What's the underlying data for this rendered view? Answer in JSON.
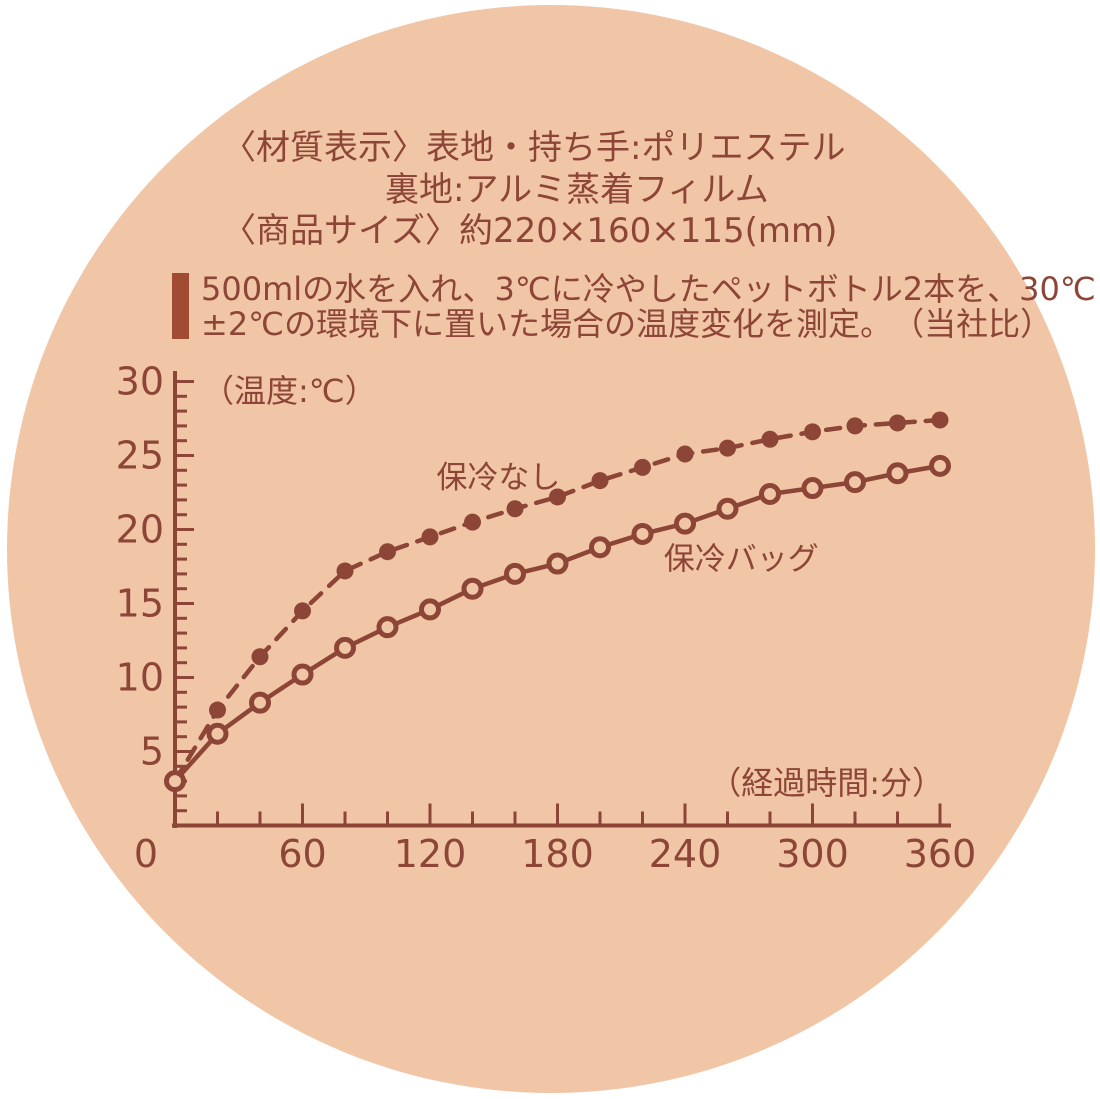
{
  "colors": {
    "circle_bg": "#f1c6a6",
    "ink": "#8c4536",
    "accent_bar": "#a24b33"
  },
  "header": {
    "material_label": "〈材質表示〉",
    "material_value": "表地・持ち手:ポリエステル",
    "material_line2": "裏地:アルミ蒸着フィルム",
    "size_label": "〈商品サイズ〉",
    "size_value": "約220×160×115(mm)"
  },
  "description": {
    "line1": "500mlの水を入れ、3℃に冷やしたペットボトル2本を、30℃",
    "line2": "±2℃の環境下に置いた場合の温度変化を測定。",
    "note": "（当社比）"
  },
  "chart_data": {
    "type": "line",
    "title": "",
    "xlabel": "（経過時間:分）",
    "ylabel": "（温度:℃）",
    "xlim": [
      0,
      366
    ],
    "ylim": [
      0,
      30
    ],
    "grid": false,
    "legend_position": "inline-annotations",
    "x": [
      0,
      20,
      40,
      60,
      80,
      100,
      120,
      140,
      160,
      180,
      200,
      220,
      240,
      260,
      280,
      300,
      320,
      340,
      360
    ],
    "x_major_tick_labels": [
      0,
      60,
      120,
      180,
      240,
      300,
      360
    ],
    "x_minor_tick_step": 20,
    "y_major_tick_labels": [
      5,
      10,
      15,
      20,
      25,
      30
    ],
    "y_minor_tick_step": 1,
    "series": [
      {
        "name": "保冷なし",
        "line_style": "dashed",
        "marker": "filled-circle",
        "skip_first_marker": true,
        "values": [
          3,
          7.8,
          11.4,
          14.5,
          17.2,
          18.5,
          19.5,
          20.5,
          21.4,
          22.2,
          23.3,
          24.2,
          25.1,
          25.5,
          26.1,
          26.6,
          27.0,
          27.2,
          27.4
        ]
      },
      {
        "name": "保冷バッグ",
        "line_style": "solid",
        "marker": "open-circle",
        "skip_first_marker": false,
        "values": [
          3,
          6.2,
          8.3,
          10.2,
          12.0,
          13.4,
          14.6,
          16.0,
          17.0,
          17.7,
          18.8,
          19.7,
          20.4,
          21.4,
          22.4,
          22.8,
          23.2,
          23.8,
          24.3
        ]
      }
    ],
    "annotations": [
      {
        "text": "保冷なし",
        "x_min": 123,
        "temp_c": 22.8
      },
      {
        "text": "保冷バッグ",
        "x_min": 230,
        "temp_c": 17.3
      }
    ]
  }
}
